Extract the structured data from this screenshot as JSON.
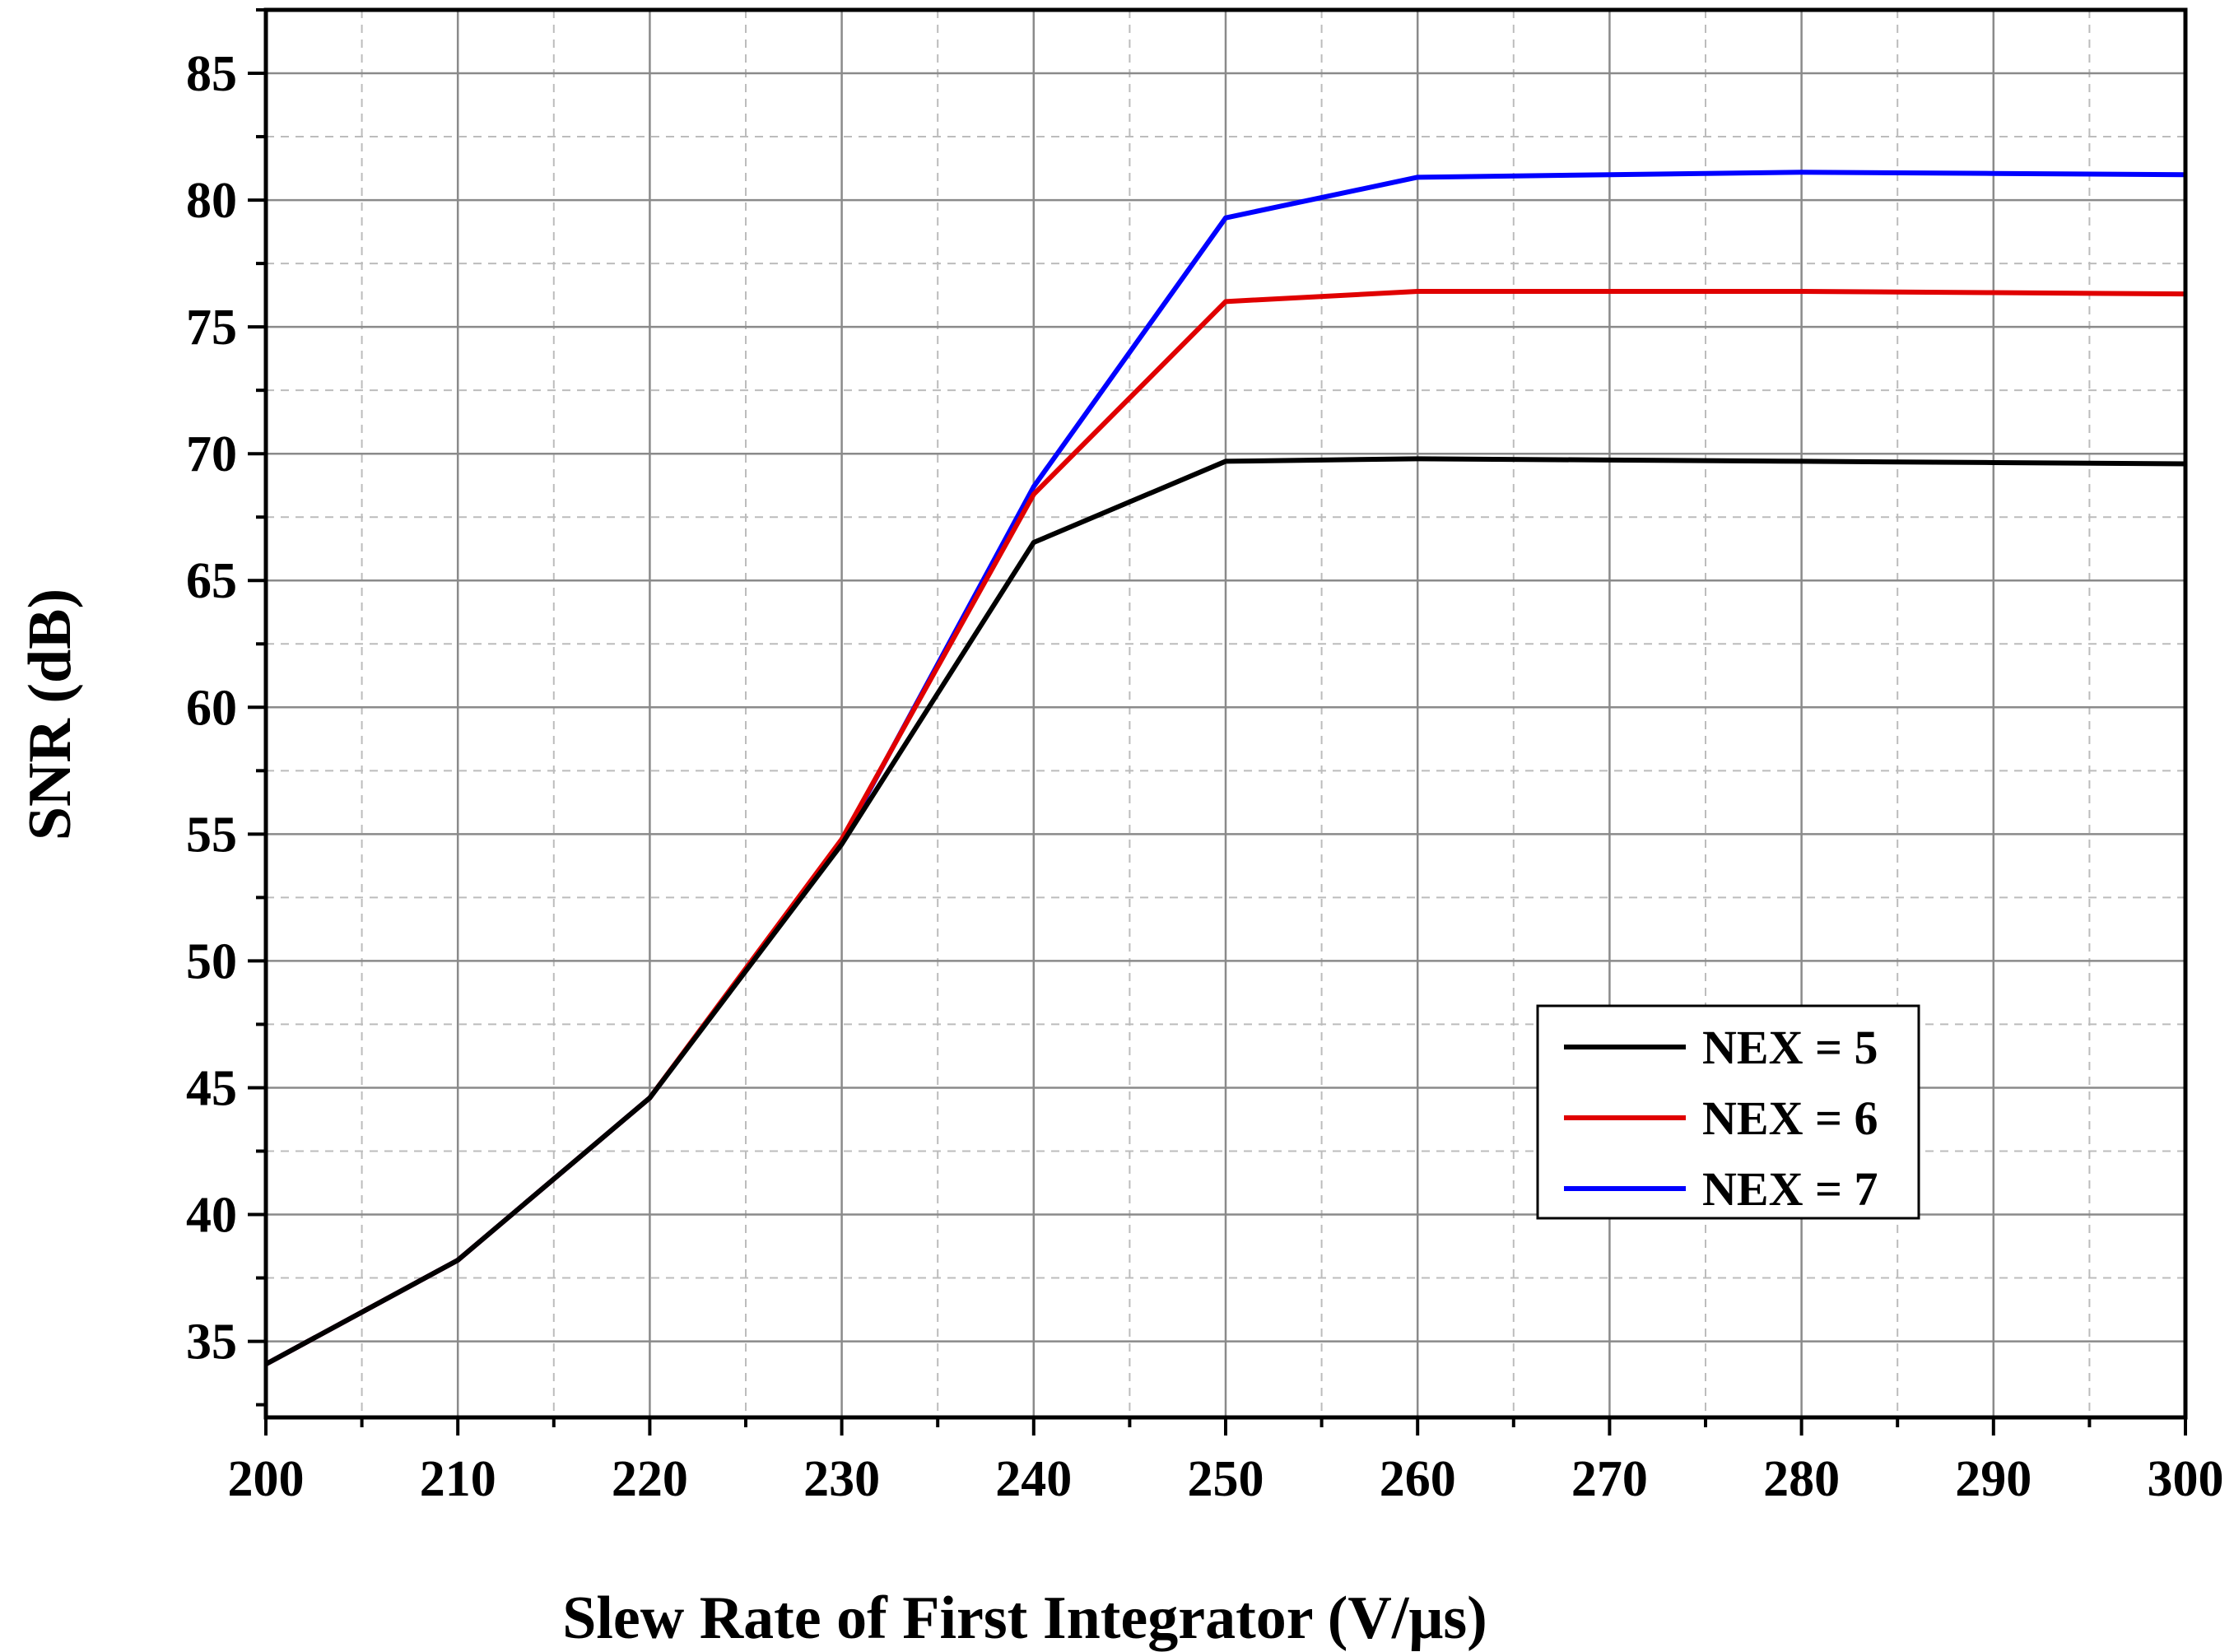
{
  "chart_data": {
    "type": "line",
    "xlabel": "Slew Rate of First Integrator (V/μs)",
    "ylabel": "SNR (dB)",
    "xlim": [
      200,
      300
    ],
    "ylim": [
      32,
      87.5
    ],
    "x_ticks": [
      "200",
      "210",
      "220",
      "230",
      "240",
      "250",
      "260",
      "270",
      "280",
      "290",
      "300"
    ],
    "y_ticks": [
      "35",
      "40",
      "45",
      "50",
      "55",
      "60",
      "65",
      "70",
      "75",
      "80",
      "85"
    ],
    "grid": true,
    "legend_position": "bottom-right",
    "x": [
      200,
      210,
      220,
      230,
      240,
      250,
      260,
      270,
      280,
      290,
      300
    ],
    "series": [
      {
        "name": "NEX = 5",
        "color": "#000000",
        "values": [
          34.1,
          38.2,
          44.6,
          54.6,
          66.5,
          69.7,
          69.8,
          69.75,
          69.7,
          69.65,
          69.6
        ]
      },
      {
        "name": "NEX = 6",
        "color": "#e00000",
        "values": [
          34.1,
          38.2,
          44.6,
          54.8,
          68.4,
          76.0,
          76.4,
          76.4,
          76.4,
          76.35,
          76.3
        ]
      },
      {
        "name": "NEX = 7",
        "color": "#0000ff",
        "values": [
          34.1,
          38.2,
          44.6,
          54.7,
          68.7,
          79.3,
          80.9,
          81.0,
          81.1,
          81.05,
          81.0
        ]
      }
    ]
  }
}
